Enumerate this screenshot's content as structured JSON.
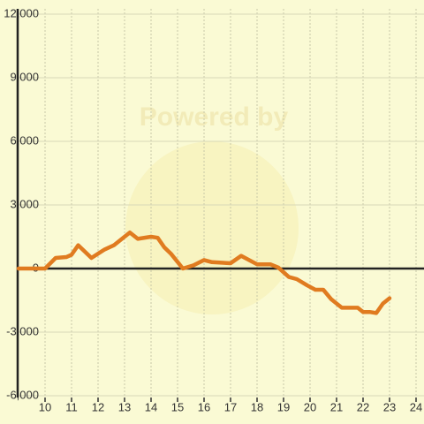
{
  "chart_data": {
    "type": "line",
    "watermark": "Powered by",
    "xlim": [
      9,
      24.3
    ],
    "ylim": [
      -6000,
      12000
    ],
    "xticks": [
      10,
      11,
      12,
      13,
      14,
      15,
      16,
      17,
      18,
      19,
      20,
      21,
      22,
      23,
      24
    ],
    "yticks": [
      {
        "value": -6000,
        "label": "-6,000"
      },
      {
        "value": -3000,
        "label": "-3,000"
      },
      0,
      {
        "value": 3000,
        "label": "3,000"
      },
      {
        "value": 6000,
        "label": "6,000"
      },
      {
        "value": 9000,
        "label": "9,000"
      },
      {
        "value": 12000,
        "label": "12,000"
      }
    ],
    "grid": true,
    "series": [
      {
        "color": "#e07b20",
        "x": [
          9,
          10,
          10.4,
          10.8,
          11,
          11.25,
          11.75,
          12.25,
          12.6,
          13,
          13.2,
          13.5,
          14,
          14.25,
          14.5,
          14.75,
          15.2,
          15.6,
          16,
          16.3,
          17,
          17.4,
          18,
          18.5,
          18.8,
          19.2,
          19.5,
          19.9,
          20.2,
          20.5,
          20.8,
          21.2,
          21.8,
          22,
          22.25,
          22.5,
          22.75,
          23
        ],
        "values": [
          0,
          0,
          500,
          540,
          650,
          1100,
          500,
          900,
          1100,
          1500,
          1700,
          1400,
          1500,
          1450,
          1000,
          700,
          0,
          150,
          400,
          300,
          250,
          600,
          200,
          200,
          50,
          -400,
          -500,
          -800,
          -1000,
          -1000,
          -1450,
          -1850,
          -1850,
          -2050,
          -2050,
          -2100,
          -1650,
          -1400
        ]
      }
    ]
  }
}
